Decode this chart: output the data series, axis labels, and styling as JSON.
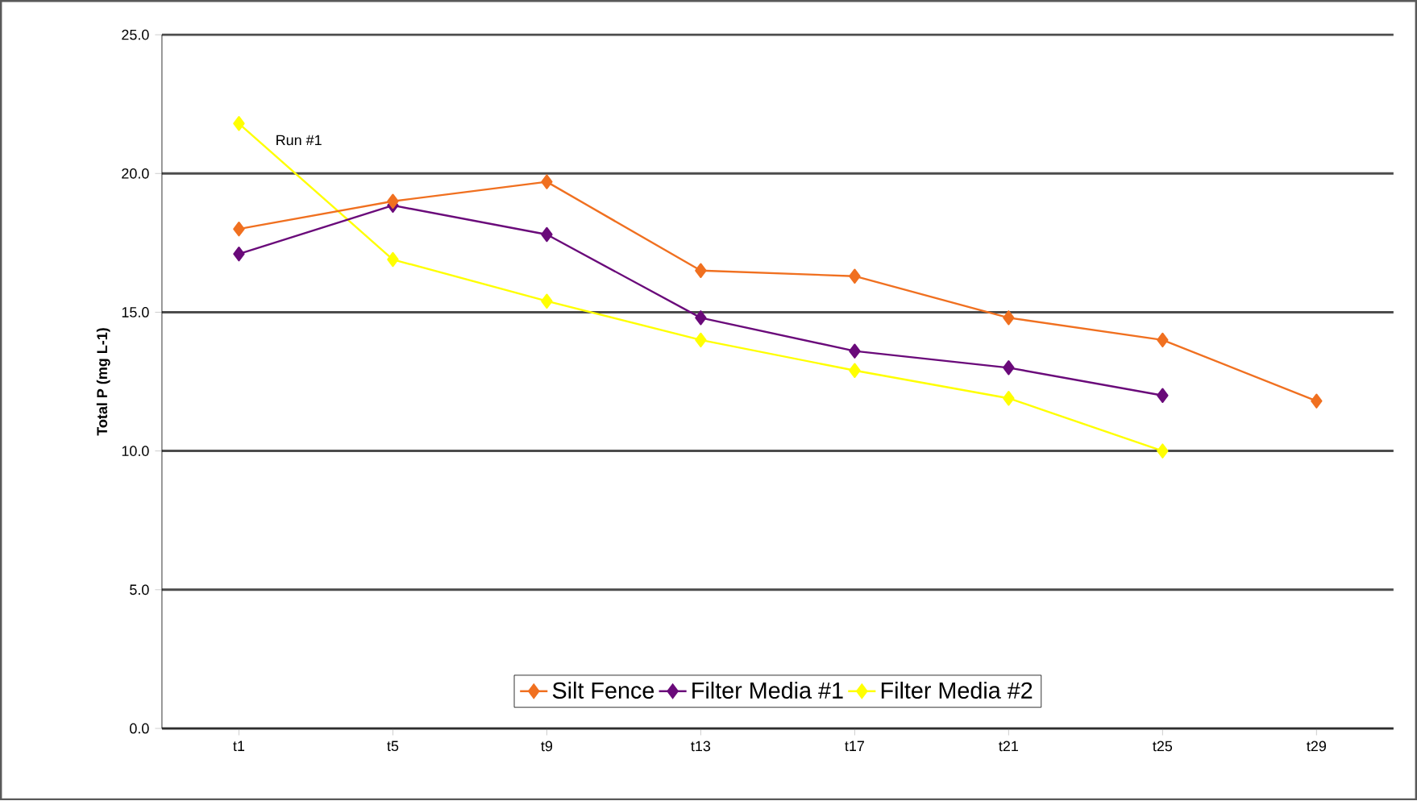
{
  "chart_data": {
    "type": "line",
    "ylabel": "Total P (mg L-1)",
    "categories": [
      "t1",
      "t5",
      "t9",
      "t13",
      "t17",
      "t21",
      "t25",
      "t29"
    ],
    "series": [
      {
        "name": "Silt Fence",
        "color": "#f07020",
        "values": [
          18.0,
          19.0,
          19.7,
          16.5,
          16.3,
          14.8,
          14.0,
          11.8
        ]
      },
      {
        "name": "Filter Media #1",
        "color": "#6a0a7a",
        "values": [
          17.1,
          18.85,
          17.8,
          14.8,
          13.6,
          13.0,
          12.0,
          null
        ]
      },
      {
        "name": "Filter Media #2",
        "color": "#ffff00",
        "values": [
          21.8,
          16.9,
          15.4,
          14.0,
          12.9,
          11.9,
          10.0,
          null
        ]
      }
    ],
    "ylim": [
      0,
      25
    ],
    "yticks": [
      {
        "value": 0,
        "label": "0.0"
      },
      {
        "value": 5,
        "label": "5.0"
      },
      {
        "value": 10,
        "label": "10.0"
      },
      {
        "value": 15,
        "label": "15.0"
      },
      {
        "value": 20,
        "label": "20.0"
      },
      {
        "value": 25,
        "label": "25.0"
      }
    ],
    "annotations": [
      "Run #1"
    ],
    "grid": "y",
    "legend": "bottom",
    "marker": "diamond",
    "line_style": "solid"
  }
}
